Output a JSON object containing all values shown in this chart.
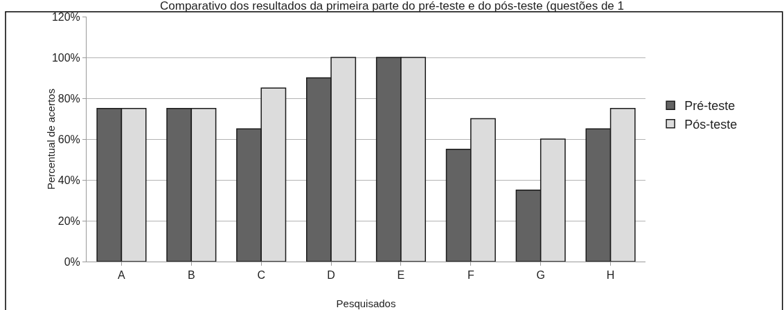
{
  "chart_data": {
    "type": "bar",
    "title": "Comparativo dos resultados da primeira parte do pré-teste e do pós-teste (questões de 1",
    "xlabel": "Pesquisados",
    "ylabel": "Percentual de acertos",
    "categories": [
      "A",
      "B",
      "C",
      "D",
      "E",
      "F",
      "G",
      "H"
    ],
    "series": [
      {
        "name": "Pré-teste",
        "color": "#636363",
        "values": [
          75,
          75,
          65,
          90,
          100,
          55,
          35,
          65
        ]
      },
      {
        "name": "Pós-teste",
        "color": "#dcdcdc",
        "values": [
          75,
          75,
          85,
          100,
          100,
          70,
          60,
          75
        ]
      }
    ],
    "ylim": [
      0,
      120
    ],
    "yticks": [
      {
        "value": 0,
        "label": "0%"
      },
      {
        "value": 20,
        "label": "20%"
      },
      {
        "value": 40,
        "label": "40%"
      },
      {
        "value": 60,
        "label": "60%"
      },
      {
        "value": 80,
        "label": "80%"
      },
      {
        "value": 100,
        "label": "100%"
      },
      {
        "value": 120,
        "label": "120%"
      }
    ],
    "grid": "y",
    "legend": "right"
  }
}
